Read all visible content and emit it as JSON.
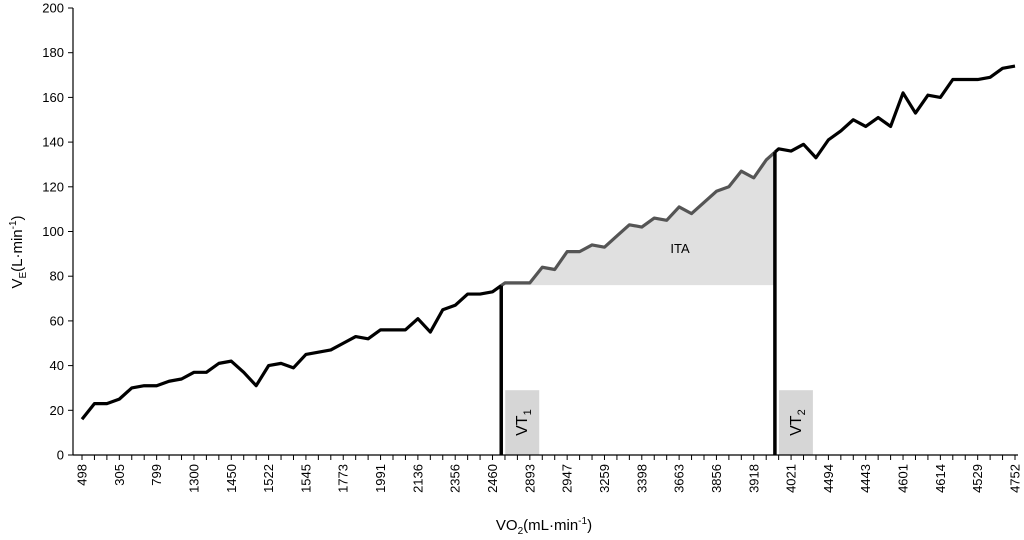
{
  "chart_data": {
    "type": "line",
    "title": "",
    "ylabel": {
      "base": "V",
      "sub": "E",
      "rest": "(L·min",
      "sup": "-1",
      "close": ")"
    },
    "xlabel": {
      "base": "VO",
      "sub": "2",
      "rest": "(mL·min",
      "sup": "-1",
      "close": ")"
    },
    "ylim": [
      0,
      200
    ],
    "yticks": [
      "0",
      "20",
      "40",
      "60",
      "80",
      "100",
      "120",
      "140",
      "160",
      "180",
      "200"
    ],
    "x_tick_labels": [
      "498",
      "305",
      "799",
      "1300",
      "1450",
      "1522",
      "1545",
      "1773",
      "1991",
      "2136",
      "2356",
      "2460",
      "2893",
      "2947",
      "3259",
      "3398",
      "3663",
      "3856",
      "3918",
      "4021",
      "4494",
      "4443",
      "4601",
      "4614",
      "4529",
      "4752"
    ],
    "grid": false,
    "legend": "none",
    "series": [
      {
        "values": [
          16,
          23,
          23,
          25,
          30,
          31,
          31,
          33,
          34,
          37,
          37,
          41,
          42,
          37,
          31,
          40,
          41,
          39,
          45,
          46,
          47,
          50,
          53,
          52,
          56,
          56,
          56,
          61,
          55,
          65,
          67,
          72,
          72,
          73,
          77,
          77,
          77,
          84,
          83,
          91,
          91,
          94,
          93,
          98,
          103,
          102,
          106,
          105,
          111,
          108,
          113,
          118,
          120,
          127,
          124,
          132,
          137,
          136,
          139,
          133,
          141,
          145,
          150,
          147,
          151,
          147,
          162,
          153,
          161,
          160,
          168,
          168,
          168,
          169,
          173,
          174
        ]
      }
    ],
    "vt1_index": 33.7,
    "vt2_index": 55.7,
    "ita_baseline": 76,
    "annotations": {
      "ita": "ITA",
      "vt1": "VT1",
      "vt2": "VT2"
    },
    "colors": {
      "line": "#000000",
      "ita_segment": "#555555",
      "shade": "#e0e0e0",
      "vt_box": "#d6d6d6"
    }
  }
}
